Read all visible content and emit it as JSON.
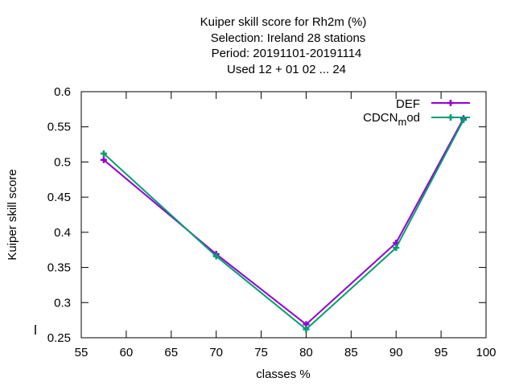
{
  "chart_data": {
    "type": "line",
    "title_lines": [
      "Kuiper skill score  for Rh2m (%)",
      "Selection: Ireland     28 stations",
      "Period: 20191101-20191114",
      "Used  12 + 01 02 ... 24"
    ],
    "xlabel": "classes %",
    "ylabel": "Kuiper skill score",
    "xlim": [
      55,
      100
    ],
    "ylim": [
      0.25,
      0.6
    ],
    "xticks": [
      "55",
      "60",
      "65",
      "70",
      "75",
      "80",
      "85",
      "90",
      "95",
      "100"
    ],
    "yticks": [
      "0.25",
      "0.3",
      "0.35",
      "0.4",
      "0.45",
      "0.5",
      "0.55",
      "0.6"
    ],
    "grid": false,
    "legend_position": "top-right",
    "series": [
      {
        "name": "DEF",
        "color": "#9400d3",
        "marker": "plus-icon",
        "x": [
          57.5,
          70,
          80,
          90,
          97.5
        ],
        "y": [
          0.503,
          0.369,
          0.269,
          0.385,
          0.562
        ]
      },
      {
        "name_parts": [
          "CDCN",
          "m",
          "od"
        ],
        "color": "#009e73",
        "marker": "plus-icon",
        "x": [
          57.5,
          70,
          80,
          90,
          97.5
        ],
        "y": [
          0.512,
          0.366,
          0.262,
          0.378,
          0.56
        ]
      }
    ]
  }
}
